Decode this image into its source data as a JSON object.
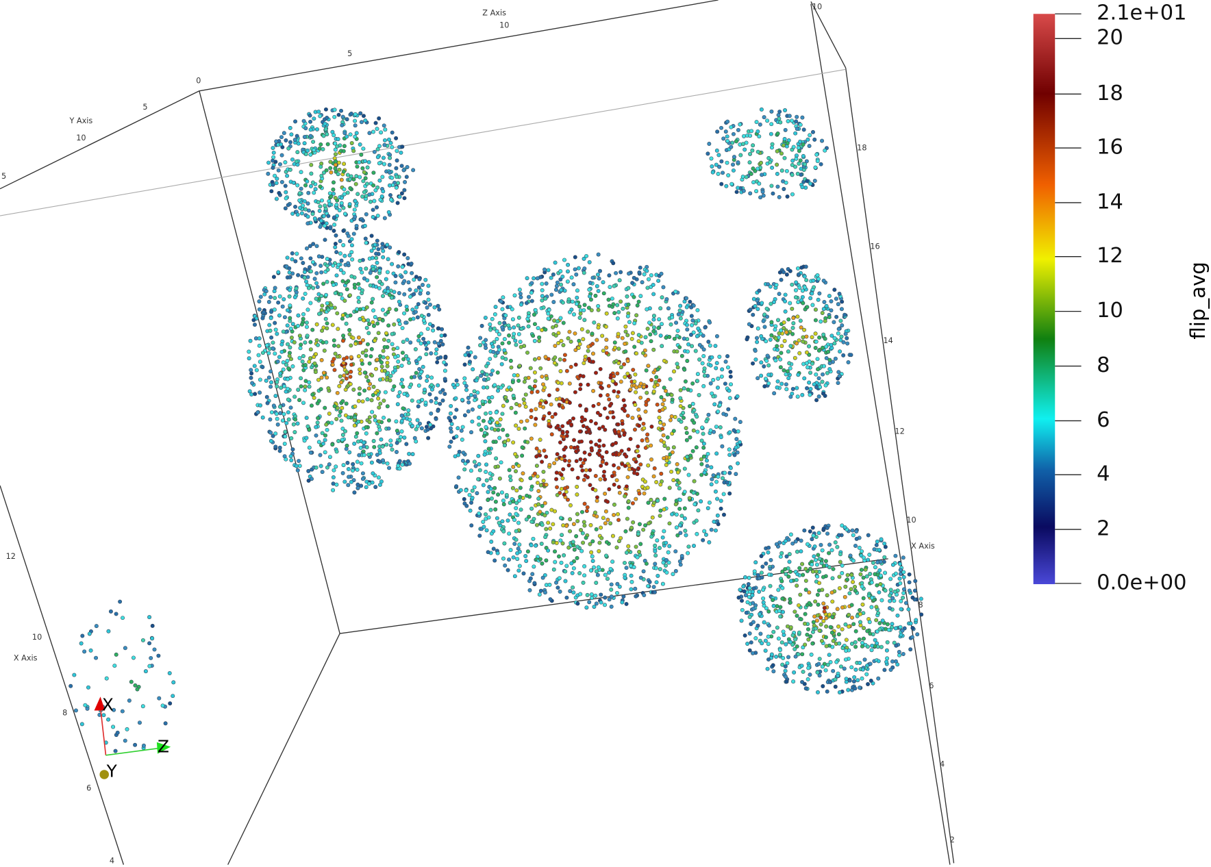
{
  "scene": {
    "axis_labels": [
      "Z Axis",
      "Y Axis",
      "X Axis",
      "X Axis"
    ],
    "tick_labels": [
      "10",
      "5",
      "0",
      "10",
      "5",
      "5",
      "10",
      "18",
      "16",
      "14",
      "12",
      "10",
      "8",
      "6",
      "4",
      "2",
      "12",
      "10",
      "8",
      "6",
      "4"
    ],
    "orientation": [
      "X",
      "Y",
      "Z"
    ]
  },
  "colorbar": {
    "title": "flip_avg",
    "labels": [
      "2.1e+01",
      "20",
      "18",
      "16",
      "14",
      "12",
      "10",
      "8",
      "6",
      "4",
      "2",
      "0.0e+00"
    ]
  }
}
